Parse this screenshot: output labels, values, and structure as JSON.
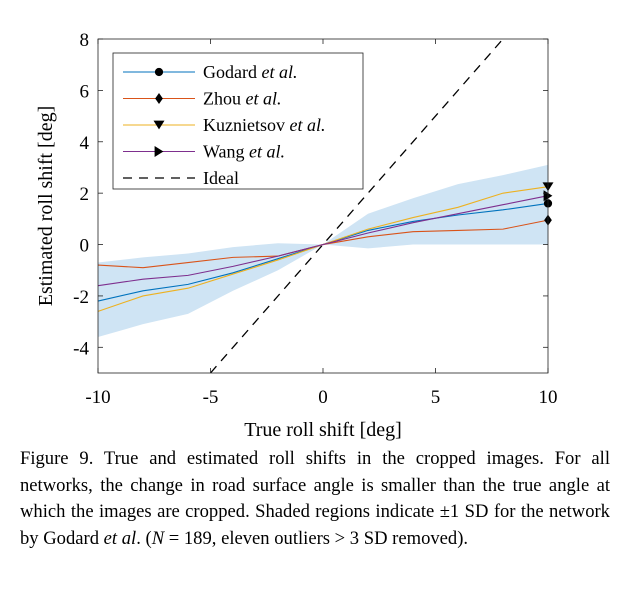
{
  "chart_data": {
    "type": "line",
    "xlabel": "True roll shift [deg]",
    "ylabel": "Estimated roll shift [deg]",
    "xlim": [
      -10,
      10
    ],
    "ylim": [
      -5,
      8
    ],
    "xticks": [
      -10,
      -5,
      0,
      5,
      10
    ],
    "yticks": [
      -4,
      -2,
      0,
      2,
      4,
      6,
      8
    ],
    "grid": false,
    "legend": "top-left",
    "x": [
      -10,
      -8,
      -6,
      -4,
      -2,
      0,
      2,
      4,
      6,
      8,
      10
    ],
    "series": [
      {
        "name": "Godard et al.",
        "legend_prefix": "Godard ",
        "legend_italic": "et al.",
        "color": "#0072BD",
        "marker": "circle",
        "values": [
          -2.2,
          -1.8,
          -1.55,
          -1.1,
          -0.55,
          0,
          0.55,
          0.9,
          1.15,
          1.35,
          1.6
        ],
        "end_marker": 1.6
      },
      {
        "name": "Zhou et al.",
        "legend_prefix": "Zhou ",
        "legend_italic": "et al.",
        "color": "#D95319",
        "marker": "diamond",
        "values": [
          -0.8,
          -0.9,
          -0.7,
          -0.5,
          -0.45,
          0,
          0.3,
          0.5,
          0.55,
          0.6,
          0.95
        ],
        "end_marker": 0.95
      },
      {
        "name": "Kuznietsov et al.",
        "legend_prefix": "Kuznietsov ",
        "legend_italic": "et al.",
        "color": "#EDB120",
        "marker": "triangle-down",
        "values": [
          -2.6,
          -2.0,
          -1.7,
          -1.15,
          -0.6,
          0,
          0.6,
          1.05,
          1.45,
          2.0,
          2.25
        ],
        "end_marker": 2.25
      },
      {
        "name": "Wang et al.",
        "legend_prefix": "Wang ",
        "legend_italic": "et al.",
        "color": "#7E2F8E",
        "marker": "triangle-right",
        "values": [
          -1.6,
          -1.35,
          -1.2,
          -0.85,
          -0.45,
          0,
          0.45,
          0.85,
          1.2,
          1.55,
          1.9
        ],
        "end_marker": 1.9
      },
      {
        "name": "Ideal",
        "legend_prefix": "Ideal",
        "legend_italic": "",
        "color": "#000000",
        "dashed": true,
        "line": [
          [
            -5,
            -5
          ],
          [
            8,
            8
          ]
        ]
      }
    ],
    "sd_band": {
      "color": "#cfe4f4",
      "upper": [
        -0.7,
        -0.5,
        -0.35,
        -0.1,
        0.05,
        0,
        1.2,
        1.8,
        2.35,
        2.7,
        3.1
      ],
      "lower": [
        -3.6,
        -3.1,
        -2.7,
        -1.8,
        -1.0,
        0,
        -0.15,
        0.0,
        0.0,
        0.0,
        0.0
      ]
    }
  },
  "caption": {
    "figure_label": "Figure 9.",
    "text_1": " True and estimated roll shifts in the cropped images. For all networks, the change in road surface angle is smaller than the true angle at which the images are cropped.  Shaded regions indicate ",
    "pm": "±",
    "text_2": "1 SD for the network by Godard ",
    "italic_etal": "et al",
    "text_3": ". (",
    "n_symbol": "N",
    "text_4": " = 189, eleven outliers ",
    "gt": ">",
    "text_5": " 3 SD removed)."
  }
}
